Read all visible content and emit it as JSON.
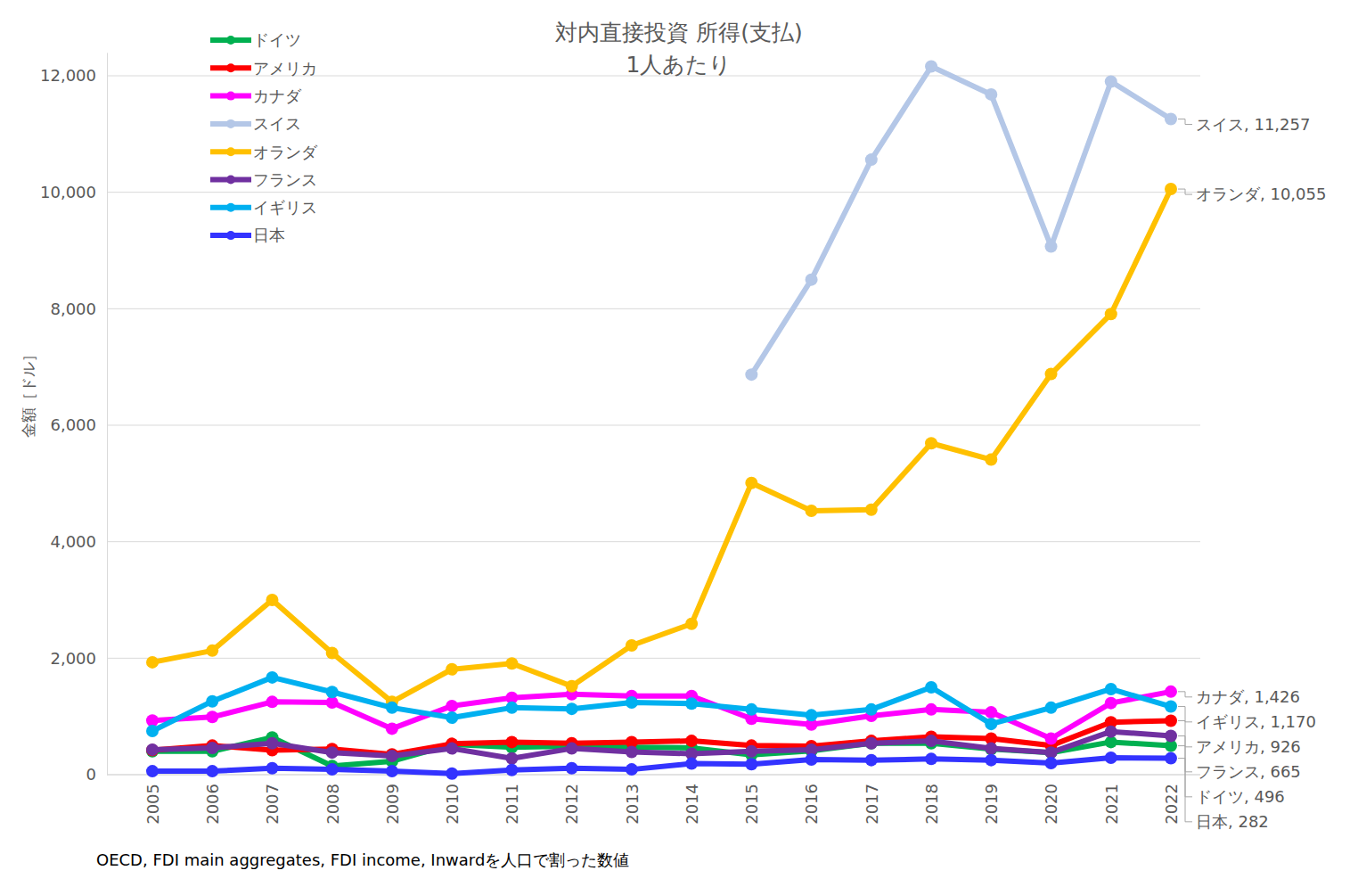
{
  "chart_data": {
    "type": "line",
    "title": "対内直接投資 所得(支払)",
    "subtitle": "1人あたり",
    "y_label": "金額［ドル］",
    "source": "OECD, FDI main aggregates, FDI income, Inwardを人口で割った数値",
    "categories": [
      "2005",
      "2006",
      "2007",
      "2008",
      "2009",
      "2010",
      "2011",
      "2012",
      "2013",
      "2014",
      "2015",
      "2016",
      "2017",
      "2018",
      "2019",
      "2020",
      "2021",
      "2022"
    ],
    "ylim": [
      0,
      12400
    ],
    "yticks": [
      0,
      {
        "value": 2000,
        "label": "2,000"
      },
      {
        "value": 4000,
        "label": "4,000"
      },
      {
        "value": 6000,
        "label": "6,000"
      },
      {
        "value": 8000,
        "label": "8,000"
      },
      {
        "value": 10000,
        "label": "10,000"
      },
      {
        "value": 12000,
        "label": "12,000"
      }
    ],
    "grid": true,
    "legend": "top-left",
    "marker": "circle",
    "series": [
      {
        "name": "ドイツ",
        "color": "#00b050",
        "values": [
          400,
          400,
          640,
          150,
          230,
          520,
          470,
          490,
          470,
          460,
          340,
          410,
          540,
          540,
          440,
          380,
          560,
          496
        ]
      },
      {
        "name": "アメリカ",
        "color": "#ff0000",
        "values": [
          420,
          500,
          420,
          440,
          350,
          530,
          560,
          540,
          560,
          580,
          500,
          490,
          580,
          650,
          620,
          500,
          900,
          926
        ]
      },
      {
        "name": "カナダ",
        "color": "#ff00ff",
        "values": [
          930,
          990,
          1250,
          1240,
          790,
          1180,
          1320,
          1380,
          1350,
          1350,
          960,
          860,
          1010,
          1120,
          1070,
          620,
          1230,
          1426
        ]
      },
      {
        "name": "スイス",
        "color": "#b4c7e7",
        "values": [
          null,
          null,
          null,
          null,
          null,
          null,
          null,
          null,
          null,
          null,
          6870,
          8500,
          10560,
          12160,
          11680,
          9070,
          11900,
          11257
        ]
      },
      {
        "name": "オランダ",
        "color": "#ffc000",
        "values": [
          1930,
          2130,
          3000,
          2090,
          1250,
          1810,
          1910,
          1520,
          2220,
          2590,
          5010,
          4530,
          4550,
          5690,
          5410,
          6880,
          7910,
          10055
        ]
      },
      {
        "name": "フランス",
        "color": "#7030a0",
        "values": [
          430,
          460,
          540,
          380,
          320,
          450,
          280,
          450,
          390,
          360,
          400,
          430,
          540,
          580,
          450,
          380,
          740,
          665
        ]
      },
      {
        "name": "イギリス",
        "color": "#00b0f0",
        "values": [
          750,
          1260,
          1670,
          1420,
          1150,
          980,
          1150,
          1130,
          1240,
          1220,
          1120,
          1020,
          1120,
          1500,
          870,
          1150,
          1470,
          1170
        ]
      },
      {
        "name": "日本",
        "color": "#3333ff",
        "values": [
          60,
          60,
          110,
          90,
          60,
          20,
          80,
          110,
          90,
          190,
          180,
          260,
          250,
          270,
          250,
          200,
          290,
          282
        ]
      }
    ],
    "annotations": [
      {
        "text": "スイス, 11,257",
        "x": "2022",
        "y": 11257
      },
      {
        "text": "オランダ, 10,055",
        "x": "2022",
        "y": 10055
      },
      {
        "text": "カナダ, 1,426",
        "x": "2022",
        "y": 1426
      },
      {
        "text": "イギリス, 1,170",
        "x": "2022",
        "y": 1170
      },
      {
        "text": "アメリカ, 926",
        "x": "2022",
        "y": 926
      },
      {
        "text": "フランス, 665",
        "x": "2022",
        "y": 665
      },
      {
        "text": "ドイツ, 496",
        "x": "2022",
        "y": 496
      },
      {
        "text": "日本, 282",
        "x": "2022",
        "y": 282
      }
    ]
  }
}
